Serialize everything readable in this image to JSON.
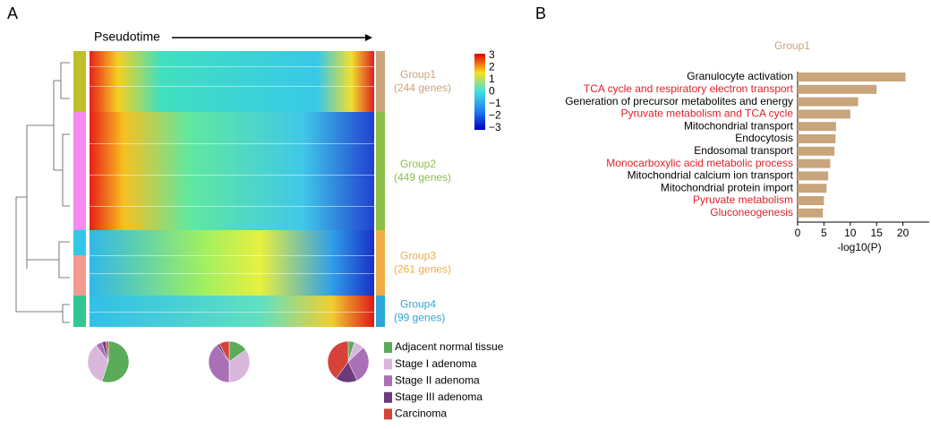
{
  "panels": [
    "A",
    "B"
  ],
  "chart_data": [
    {
      "type": "heatmap",
      "xlabel": "Pseudotime",
      "groups": [
        {
          "name": "Group1",
          "genes": "(244 genes)",
          "color": "#c8a57a"
        },
        {
          "name": "Group2",
          "genes": "(449 genes)",
          "color": "#8cbf45"
        },
        {
          "name": "Group3",
          "genes": "(261 genes)",
          "color": "#f0ac48"
        },
        {
          "name": "Group4",
          "genes": "(99 genes)",
          "color": "#2aa7d8"
        }
      ],
      "zlim": [
        -3,
        3
      ],
      "zticks": [
        3,
        2,
        1,
        0,
        {
          "value": -1,
          "label": "−1"
        },
        {
          "value": -2,
          "label": "−2"
        },
        {
          "value": -3,
          "label": "−3"
        }
      ]
    },
    {
      "type": "pie",
      "categories": [
        "Adjacent normal tissue",
        "Stage I adenoma",
        "Stage II adenoma",
        "Stage III adenoma",
        "Carcinoma"
      ],
      "colors": [
        "#5aab5a",
        "#d9b8dc",
        "#a970b5",
        "#6a3a7d",
        "#d6423a"
      ],
      "pies": [
        [
          55,
          35,
          5,
          3,
          2
        ],
        [
          15,
          35,
          40,
          2,
          8
        ],
        [
          5,
          8,
          30,
          17,
          40
        ]
      ]
    },
    {
      "type": "bar",
      "title": "Group1",
      "title_color": "#c8a57a",
      "categories": [
        "Granulocyte activation",
        "TCA cycle and respiratory electron transport",
        "Generation of precursor metabolites and energy",
        "Pyruvate metabolism and TCA cycle",
        "Mitochondrial transport",
        "Endocytosis",
        "Endosomal transport",
        "Monocarboxylic acid metabolic process",
        "Mitochondrial calcium ion transport",
        "Mitochondrial protein import",
        "Pyruvate metabolism",
        "Gluconeogenesis"
      ],
      "label_colors": [
        "#000000",
        "#e0202a",
        "#000000",
        "#e0202a",
        "#000000",
        "#000000",
        "#000000",
        "#e0202a",
        "#000000",
        "#000000",
        "#e0202a",
        "#e0202a"
      ],
      "values": [
        20.5,
        15,
        11.5,
        10,
        7.3,
        7.2,
        7,
        6.2,
        5.8,
        5.5,
        5,
        4.8
      ],
      "color": "#c8a57a",
      "xlabel": "-log10(P)",
      "xlim": [
        0,
        25
      ],
      "xticks": [
        0,
        5,
        10,
        15,
        20
      ]
    }
  ]
}
